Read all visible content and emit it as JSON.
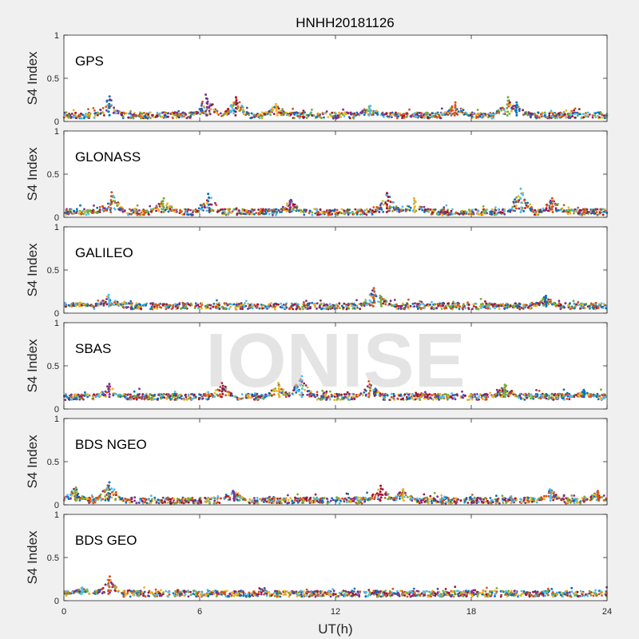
{
  "chart_data": {
    "type": "scatter",
    "title": "HNHH20181126",
    "xlabel": "UT(h)",
    "ylabel": "S4 Index",
    "xlim": [
      0,
      24
    ],
    "ylim": [
      0,
      1
    ],
    "x_ticks": [
      "0",
      "6",
      "12",
      "18",
      "24"
    ],
    "y_ticks": [
      "0",
      "0.5",
      "1"
    ],
    "watermark": "IONISE",
    "colors": [
      "#0072BD",
      "#D95319",
      "#EDB120",
      "#7E2F8E",
      "#77AC30",
      "#4DBEEE",
      "#A2142F"
    ],
    "panels": [
      {
        "name": "GPS",
        "baseline": 0.07,
        "spikes": [
          [
            2.0,
            0.29
          ],
          [
            6.3,
            0.31
          ],
          [
            7.6,
            0.28
          ],
          [
            9.4,
            0.2
          ],
          [
            13.5,
            0.18
          ],
          [
            17.3,
            0.22
          ],
          [
            19.6,
            0.28
          ],
          [
            20.0,
            0.22
          ]
        ]
      },
      {
        "name": "GLONASS",
        "baseline": 0.06,
        "spikes": [
          [
            2.1,
            0.29
          ],
          [
            4.4,
            0.22
          ],
          [
            6.4,
            0.27
          ],
          [
            10.0,
            0.2
          ],
          [
            14.3,
            0.28
          ],
          [
            15.5,
            0.22
          ],
          [
            20.2,
            0.33
          ],
          [
            21.6,
            0.22
          ]
        ]
      },
      {
        "name": "GALILEO",
        "baseline": 0.08,
        "spikes": [
          [
            0.7,
            0.12
          ],
          [
            2.0,
            0.21
          ],
          [
            13.7,
            0.29
          ],
          [
            14.0,
            0.2
          ],
          [
            21.3,
            0.2
          ]
        ]
      },
      {
        "name": "SBAS",
        "baseline": 0.14,
        "spikes": [
          [
            2.0,
            0.29
          ],
          [
            7.0,
            0.3
          ],
          [
            9.5,
            0.3
          ],
          [
            10.5,
            0.38
          ],
          [
            13.5,
            0.32
          ],
          [
            19.5,
            0.28
          ],
          [
            23.0,
            0.22
          ]
        ]
      },
      {
        "name": "BDS NGEO",
        "baseline": 0.05,
        "spikes": [
          [
            0.5,
            0.2
          ],
          [
            2.0,
            0.26
          ],
          [
            7.5,
            0.16
          ],
          [
            14.0,
            0.22
          ],
          [
            15.0,
            0.18
          ],
          [
            21.5,
            0.18
          ],
          [
            23.6,
            0.16
          ]
        ]
      },
      {
        "name": "BDS GEO",
        "baseline": 0.08,
        "spikes": [
          [
            0.8,
            0.15
          ],
          [
            2.0,
            0.28
          ]
        ]
      }
    ]
  }
}
